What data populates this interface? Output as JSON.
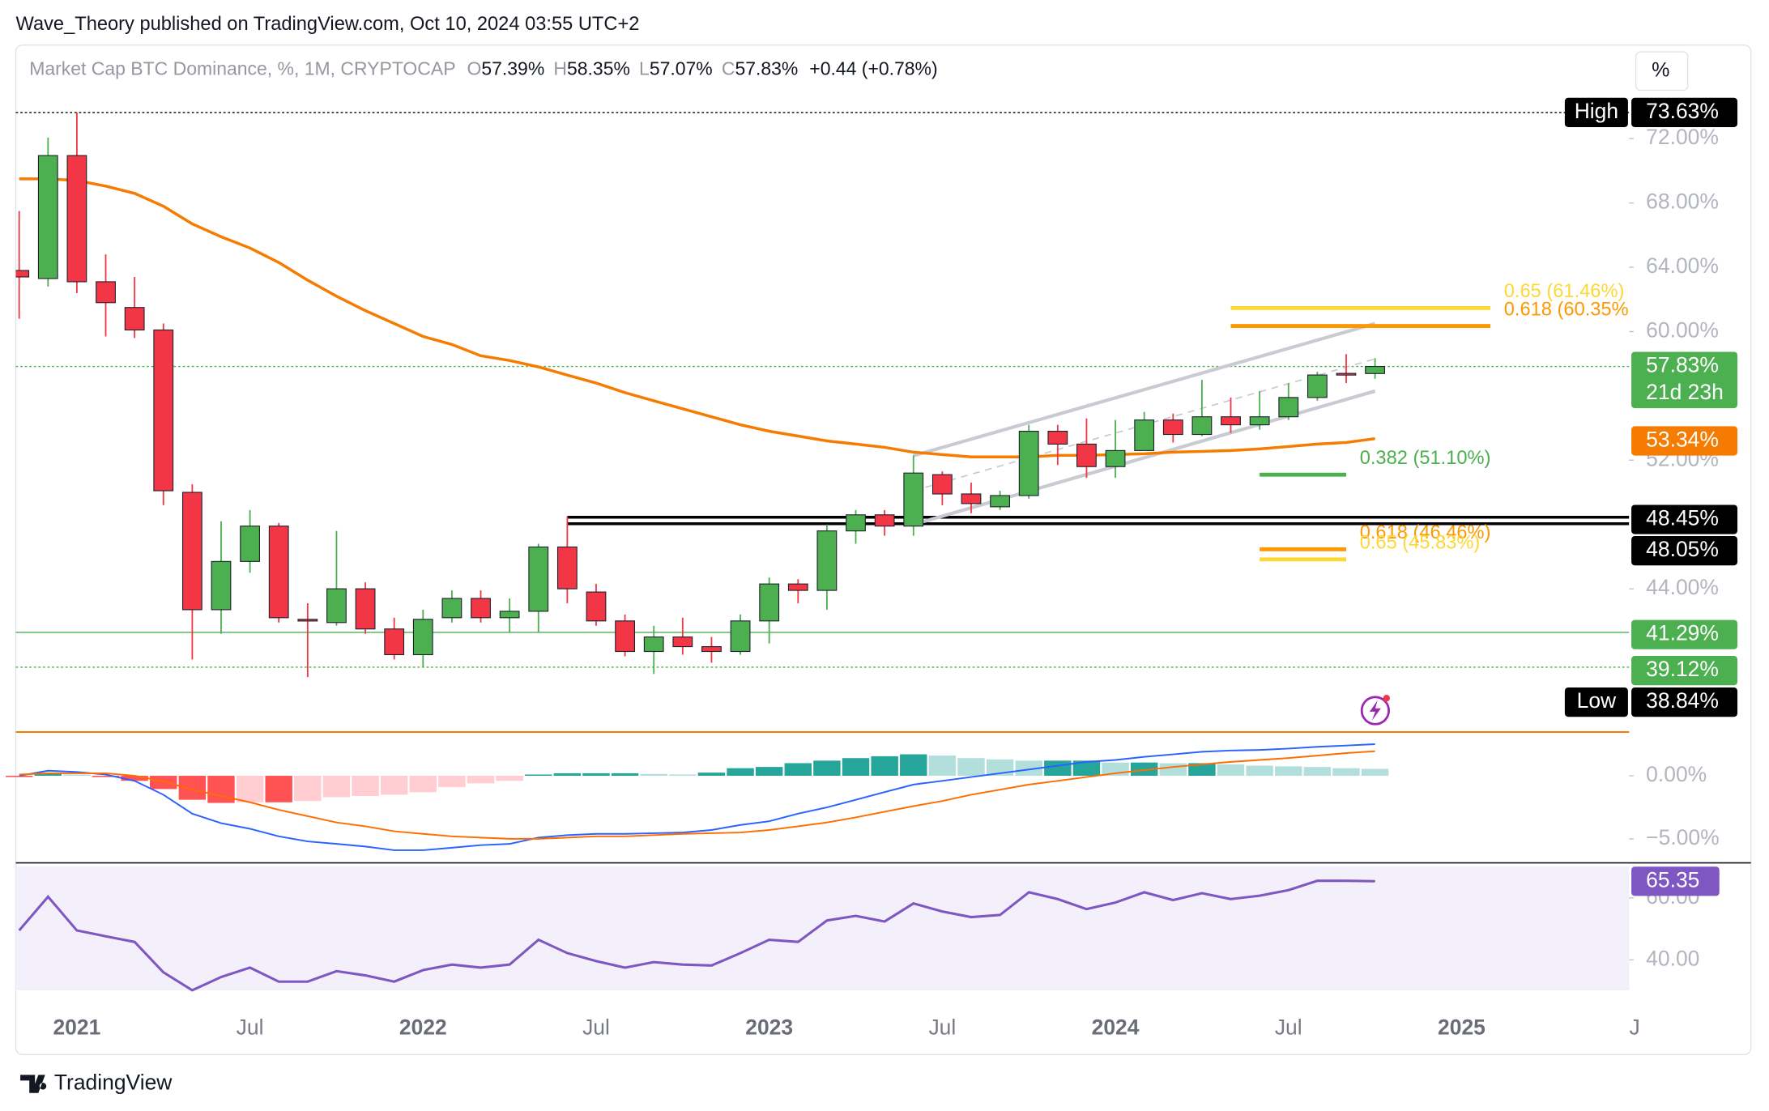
{
  "header": {
    "published": "Wave_Theory published on TradingView.com, Oct 10, 2024 03:55 UTC+2",
    "unit_button": "%",
    "brand": "TradingView"
  },
  "chart_data": {
    "type": "candlestick",
    "title": "Market Cap BTC Dominance, %, 1M, CRYPTOCAP",
    "legend_ohlc": [
      {
        "key": "O",
        "label": "57.39%"
      },
      {
        "key": "H",
        "label": "58.35%"
      },
      {
        "key": "L",
        "label": "57.07%"
      },
      {
        "key": "C",
        "label": "57.83%"
      }
    ],
    "change": "+0.44 (+0.78%)",
    "categories": [
      "2020-11",
      "2020-12",
      "2021-01",
      "2021-02",
      "2021-03",
      "2021-04",
      "2021-05",
      "2021-06",
      "2021-07",
      "2021-08",
      "2021-09",
      "2021-10",
      "2021-11",
      "2021-12",
      "2022-01",
      "2022-02",
      "2022-03",
      "2022-04",
      "2022-05",
      "2022-06",
      "2022-07",
      "2022-08",
      "2022-09",
      "2022-10",
      "2022-11",
      "2022-12",
      "2023-01",
      "2023-02",
      "2023-03",
      "2023-04",
      "2023-05",
      "2023-06",
      "2023-07",
      "2023-08",
      "2023-09",
      "2023-10",
      "2023-11",
      "2023-12",
      "2024-01",
      "2024-02",
      "2024-03",
      "2024-04",
      "2024-05",
      "2024-06",
      "2024-07",
      "2024-08",
      "2024-09",
      "2024-10"
    ],
    "open": [
      63.8,
      63.3,
      70.95,
      63.1,
      61.5,
      60.1,
      50.0,
      42.7,
      45.7,
      47.9,
      42.1,
      41.9,
      44.0,
      41.5,
      39.9,
      42.2,
      43.4,
      42.2,
      42.6,
      46.6,
      43.8,
      42.0,
      40.1,
      41.0,
      40.4,
      40.1,
      42.0,
      44.3,
      43.9,
      47.6,
      48.6,
      47.9,
      51.1,
      49.9,
      49.1,
      49.8,
      53.8,
      53.0,
      51.6,
      52.6,
      54.5,
      53.6,
      54.7,
      54.2,
      54.7,
      55.9,
      57.4,
      57.39
    ],
    "high": [
      67.5,
      72.07,
      73.63,
      64.8,
      63.4,
      60.5,
      50.5,
      48.2,
      48.9,
      48.1,
      43.1,
      47.6,
      44.4,
      42.2,
      42.7,
      43.9,
      43.9,
      43.4,
      46.8,
      48.5,
      44.3,
      42.4,
      41.7,
      42.2,
      41.0,
      42.4,
      44.7,
      44.6,
      48.0,
      48.9,
      48.9,
      52.3,
      51.3,
      50.6,
      50.1,
      54.2,
      54.2,
      54.6,
      54.5,
      55.0,
      54.9,
      57.0,
      55.9,
      56.3,
      56.8,
      57.5,
      58.6,
      58.35
    ],
    "low": [
      60.8,
      62.8,
      62.4,
      59.7,
      59.6,
      49.2,
      39.6,
      41.2,
      45.0,
      41.9,
      38.5,
      41.7,
      41.2,
      39.6,
      39.1,
      41.9,
      41.9,
      41.3,
      41.3,
      43.1,
      41.7,
      39.8,
      38.7,
      39.9,
      39.4,
      39.9,
      40.6,
      43.1,
      42.7,
      46.8,
      47.3,
      47.3,
      49.2,
      48.7,
      48.9,
      49.6,
      51.7,
      50.9,
      50.9,
      52.6,
      53.1,
      53.5,
      53.7,
      53.9,
      54.5,
      55.7,
      56.8,
      57.07
    ],
    "close": [
      63.4,
      70.95,
      63.1,
      61.8,
      60.1,
      50.1,
      42.7,
      45.7,
      47.9,
      42.2,
      42.0,
      44.0,
      41.5,
      39.9,
      42.1,
      43.4,
      42.2,
      42.6,
      46.6,
      44.0,
      42.0,
      40.1,
      41.0,
      40.4,
      40.1,
      42.0,
      44.3,
      43.9,
      47.6,
      48.6,
      47.9,
      51.2,
      49.9,
      49.3,
      49.8,
      53.8,
      53.0,
      51.6,
      52.6,
      54.5,
      53.6,
      54.7,
      54.2,
      54.7,
      55.9,
      57.3,
      57.3,
      57.83
    ],
    "up_color": "#4caf50",
    "down_color": "#f23645",
    "ylim": [
      35.16,
      77.82
    ],
    "yticks": [
      {
        "value": 72,
        "label": "72.00%"
      },
      {
        "value": 68,
        "label": "68.00%"
      },
      {
        "value": 64,
        "label": "64.00%"
      },
      {
        "value": 60,
        "label": "60.00%"
      },
      {
        "value": 52,
        "label": "52.00%"
      },
      {
        "value": 44,
        "label": "44.00%"
      }
    ],
    "xticks": [
      {
        "value": "2021-01",
        "label": "2021"
      },
      {
        "value": "2021-07",
        "label": "Jul"
      },
      {
        "value": "2022-01",
        "label": "2022"
      },
      {
        "value": "2022-07",
        "label": "Jul"
      },
      {
        "value": "2023-01",
        "label": "2023"
      },
      {
        "value": "2023-07",
        "label": "Jul"
      },
      {
        "value": "2024-01",
        "label": "2024"
      },
      {
        "value": "2024-07",
        "label": "Jul"
      },
      {
        "value": "2025-01",
        "label": "2025"
      },
      {
        "value": "2025-07",
        "label": "J"
      }
    ],
    "ma": {
      "color": "#f57c00",
      "values": [
        69.5,
        69.5,
        69.4,
        69.05,
        68.6,
        67.8,
        66.7,
        65.9,
        65.2,
        64.3,
        63.2,
        62.2,
        61.3,
        60.5,
        59.7,
        59.2,
        58.5,
        58.2,
        57.8,
        57.3,
        56.8,
        56.2,
        55.7,
        55.2,
        54.7,
        54.2,
        53.8,
        53.5,
        53.2,
        53.0,
        52.8,
        52.5,
        52.35,
        52.2,
        52.2,
        52.2,
        52.3,
        52.3,
        52.35,
        52.4,
        52.5,
        52.55,
        52.6,
        52.7,
        52.85,
        53.0,
        53.1,
        53.34
      ]
    },
    "price_labels": [
      {
        "value": 73.63,
        "label": "73.63%",
        "tag": "High",
        "color": "#000000",
        "line": "dotted"
      },
      {
        "value": 57.83,
        "label": "57.83%",
        "countdown": "21d 23h",
        "color": "#4caf50",
        "line": "dotted"
      },
      {
        "value": 53.34,
        "label": "53.34%",
        "color": "#f57c00"
      },
      {
        "value": 48.45,
        "label": "48.45%",
        "color": "#000000",
        "line": "solid",
        "from": "2022-06"
      },
      {
        "value": 48.05,
        "label": "48.05%",
        "color": "#000000",
        "line": "solid",
        "from": "2022-06"
      },
      {
        "value": 41.29,
        "label": "41.29%",
        "color": "#4caf50",
        "line": "solid"
      },
      {
        "value": 39.12,
        "label": "39.12%",
        "color": "#4caf50",
        "line": "dotted"
      },
      {
        "value": 38.84,
        "label": "38.84%",
        "tag": "Low",
        "color": "#000000"
      }
    ],
    "fibs": [
      {
        "label": "0.65 (61.46%)",
        "value": 61.46,
        "color": "#fdd835",
        "x": [
          "2024-05",
          "2025-02"
        ]
      },
      {
        "label": "0.618 (60.35%)",
        "value": 60.35,
        "color": "#ff9800",
        "x": [
          "2024-05",
          "2025-02"
        ]
      },
      {
        "label": "0.382 (51.10%)",
        "value": 51.1,
        "color": "#4caf50",
        "x": [
          "2024-06",
          "2024-09"
        ]
      },
      {
        "label": "0.618 (46.46%)",
        "value": 46.46,
        "color": "#ff9800",
        "x": [
          "2024-06",
          "2024-09"
        ]
      },
      {
        "label": "0.65 (45.83%)",
        "value": 45.83,
        "color": "#fdd835",
        "x": [
          "2024-06",
          "2024-09"
        ]
      }
    ],
    "channel": [
      {
        "x": [
          "2023-06",
          "2024-10"
        ],
        "y": [
          52.28,
          60.5
        ],
        "style": "solid"
      },
      {
        "x": [
          "2023-06",
          "2024-10"
        ],
        "y": [
          50.1,
          58.3
        ],
        "style": "dashed"
      },
      {
        "x": [
          "2023-06",
          "2024-10"
        ],
        "y": [
          48.0,
          56.3
        ],
        "style": "solid"
      }
    ],
    "macd": {
      "ylim": [
        -6.9,
        3.2
      ],
      "yticks": [
        {
          "value": 0,
          "label": "0.00%"
        },
        {
          "value": -5,
          "label": "−5.00%"
        }
      ],
      "histogram": [
        -0.1,
        0.2,
        0.1,
        -0.1,
        -0.4,
        -1.05,
        -1.9,
        -2.15,
        -2.1,
        -2.1,
        -2.0,
        -1.7,
        -1.6,
        -1.5,
        -1.3,
        -0.9,
        -0.6,
        -0.4,
        0.1,
        0.2,
        0.2,
        0.2,
        0.15,
        0.1,
        0.25,
        0.6,
        0.7,
        1.0,
        1.2,
        1.4,
        1.55,
        1.7,
        1.6,
        1.4,
        1.3,
        1.2,
        1.2,
        1.2,
        1.05,
        1.05,
        1.0,
        1.0,
        0.9,
        0.8,
        0.75,
        0.7,
        0.6,
        0.55
      ],
      "series": [
        {
          "name": "MACD",
          "color": "#2962ff",
          "values": [
            0,
            0.4,
            0.3,
            0.1,
            -0.4,
            -1.5,
            -3.0,
            -3.75,
            -4.2,
            -4.8,
            -5.2,
            -5.4,
            -5.6,
            -5.9,
            -5.9,
            -5.7,
            -5.5,
            -5.4,
            -4.9,
            -4.7,
            -4.6,
            -4.6,
            -4.55,
            -4.5,
            -4.3,
            -3.9,
            -3.6,
            -3.0,
            -2.5,
            -1.9,
            -1.3,
            -0.7,
            -0.4,
            -0.1,
            0.2,
            0.5,
            0.8,
            1.1,
            1.25,
            1.5,
            1.7,
            1.9,
            2.0,
            2.05,
            2.15,
            2.3,
            2.4,
            2.5
          ]
        },
        {
          "name": "Signal",
          "color": "#ff6d00",
          "values": [
            0.1,
            0.2,
            0.2,
            0.2,
            0,
            -0.45,
            -1.1,
            -1.6,
            -2.1,
            -2.7,
            -3.2,
            -3.7,
            -4.0,
            -4.4,
            -4.6,
            -4.8,
            -4.9,
            -5.0,
            -5.0,
            -4.9,
            -4.8,
            -4.8,
            -4.7,
            -4.6,
            -4.55,
            -4.5,
            -4.3,
            -4.0,
            -3.7,
            -3.3,
            -2.85,
            -2.4,
            -2.0,
            -1.5,
            -1.1,
            -0.7,
            -0.4,
            -0.1,
            0.2,
            0.45,
            0.7,
            0.9,
            1.1,
            1.25,
            1.4,
            1.6,
            1.8,
            1.95
          ]
        }
      ]
    },
    "rsi": {
      "ylim": [
        30.2,
        70.2
      ],
      "yticks": [
        {
          "value": 60,
          "label": "60.00"
        },
        {
          "value": 40,
          "label": "40.00"
        }
      ],
      "color": "#7e57c2",
      "last_label": "65.35",
      "values": [
        49.5,
        60.4,
        49.5,
        47.6,
        45.8,
        36,
        30.2,
        34.5,
        37.5,
        33,
        33,
        36.4,
        35,
        33,
        36.7,
        38.5,
        37.5,
        38.5,
        46.5,
        42.2,
        39.6,
        37.5,
        39.3,
        38.5,
        38.2,
        42.2,
        46.5,
        45.8,
        52.7,
        54.2,
        52.4,
        58.2,
        55.6,
        53.8,
        54.5,
        61.8,
        59.6,
        56.4,
        58.5,
        61.8,
        59.3,
        61.5,
        59.6,
        60.7,
        62.5,
        65.5,
        65.5,
        65.35
      ]
    }
  }
}
